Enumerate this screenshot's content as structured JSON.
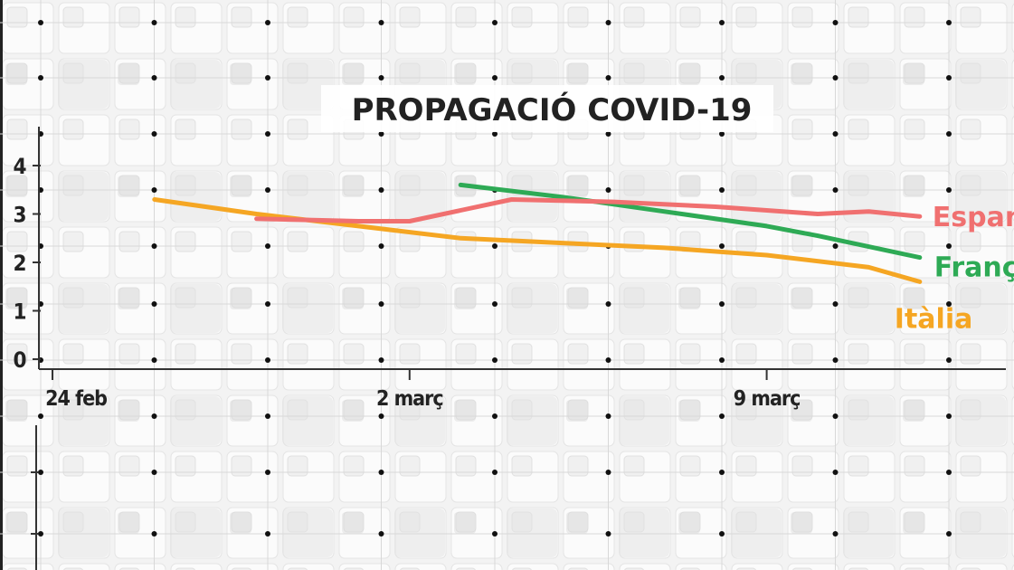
{
  "chart_data": {
    "type": "line",
    "title": "PROPAGACIÓ COVID-19",
    "xlabel": "",
    "ylabel": "",
    "x_ticks": [
      "24 feb",
      "2 març",
      "9 març"
    ],
    "y_ticks": [
      "0",
      "1",
      "2",
      "3",
      "4"
    ],
    "ylim": [
      0,
      4
    ],
    "grid": true,
    "legend": "direct labels at right end of each line",
    "series": [
      {
        "name": "Espanya",
        "color": "#f07070",
        "x": [
          "2020-02-28",
          "2020-03-01",
          "2020-03-02",
          "2020-03-04",
          "2020-03-06",
          "2020-03-08",
          "2020-03-10",
          "2020-03-11",
          "2020-03-12"
        ],
        "y": [
          2.9,
          2.85,
          2.85,
          3.3,
          3.25,
          3.15,
          3.0,
          3.05,
          2.95
        ]
      },
      {
        "name": "França",
        "color": "#2eaa55",
        "x": [
          "2020-03-03",
          "2020-03-05",
          "2020-03-07",
          "2020-03-09",
          "2020-03-10",
          "2020-03-12"
        ],
        "y": [
          3.6,
          3.35,
          3.05,
          2.75,
          2.55,
          2.1
        ]
      },
      {
        "name": "Itàlia",
        "color": "#f5a623",
        "x": [
          "2020-02-26",
          "2020-02-28",
          "2020-03-01",
          "2020-03-03",
          "2020-03-05",
          "2020-03-07",
          "2020-03-09",
          "2020-03-11",
          "2020-03-12"
        ],
        "y": [
          3.3,
          3.0,
          2.75,
          2.5,
          2.4,
          2.3,
          2.15,
          1.9,
          1.6
        ]
      }
    ]
  }
}
